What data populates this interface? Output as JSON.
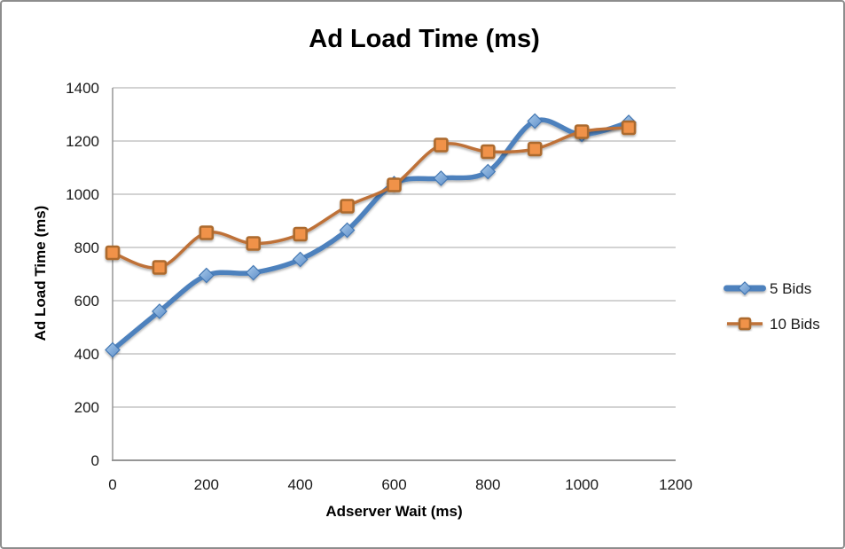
{
  "frame": {
    "background": "#ffffff",
    "border_color": "#8d8d8d"
  },
  "axes_style": {
    "axis_line_color": "#969696",
    "grid_line_color": "#b9b9b9",
    "tick_label_color": "#1a1a1a",
    "tick_font_size": 17
  },
  "chart_data": {
    "type": "line",
    "title": "Ad Load Time (ms)",
    "xlabel": "Adserver Wait (ms)",
    "ylabel": "Ad Load Time (ms)",
    "x": [
      0,
      100,
      200,
      300,
      400,
      500,
      600,
      700,
      800,
      900,
      1000,
      1100
    ],
    "series": [
      {
        "name": "5 Bids",
        "marker": "diamond",
        "line_color": "#4E81BD",
        "line_width": 5.5,
        "marker_fill_light": "#A9CAEA",
        "marker_fill_dark": "#5D8EC9",
        "marker_stroke": "#4377B3",
        "values": [
          415,
          560,
          695,
          705,
          755,
          865,
          1040,
          1060,
          1085,
          1275,
          1225,
          1270
        ]
      },
      {
        "name": "10 Bids",
        "marker": "square",
        "line_color": "#BE7137",
        "line_width": 3.5,
        "marker_fill": "#F0924A",
        "marker_stroke": "#AC6A2D",
        "values": [
          780,
          725,
          855,
          815,
          850,
          955,
          1035,
          1185,
          1160,
          1170,
          1235,
          1250
        ]
      }
    ],
    "xlim": [
      0,
      1200
    ],
    "ylim": [
      0,
      1400
    ],
    "x_ticks": [
      0,
      200,
      400,
      600,
      800,
      1000,
      1200
    ],
    "y_ticks": [
      0,
      200,
      400,
      600,
      800,
      1000,
      1200,
      1400
    ],
    "grid": "horizontal",
    "smoothed": true,
    "legend_position": "right"
  }
}
